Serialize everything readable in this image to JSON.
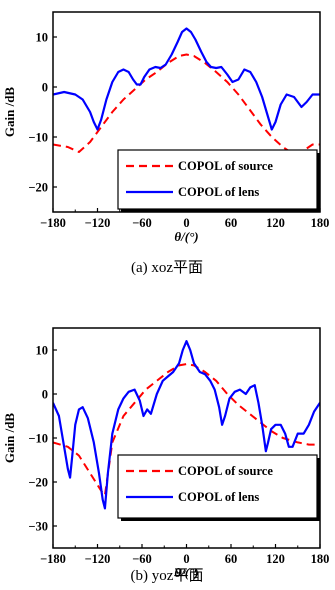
{
  "chart_data": [
    {
      "type": "line",
      "caption": "(a) xoz平面",
      "xlabel": "θ/(°)",
      "ylabel": "Gain /dB",
      "xlim": [
        -180,
        180
      ],
      "ylim": [
        -25,
        15
      ],
      "xticks": [
        "-180",
        "-120",
        "-60",
        "0",
        "60",
        "120",
        "180"
      ],
      "yticks": [
        "10",
        "0",
        "-10",
        "-20"
      ],
      "legend_position": "bottom-right",
      "series": [
        {
          "name": "COPOL of source",
          "style": "dashed",
          "color": "#ff0000",
          "x": [
            -180,
            -160,
            -145,
            -130,
            -115,
            -100,
            -85,
            -70,
            -55,
            -40,
            -25,
            -10,
            0,
            10,
            25,
            40,
            55,
            70,
            85,
            100,
            115,
            130,
            145,
            160,
            170,
            180
          ],
          "y": [
            -11.5,
            -12,
            -13,
            -11,
            -8,
            -5,
            -2.5,
            -0.5,
            1.5,
            3,
            4.8,
            6.2,
            6.5,
            6.2,
            4.8,
            3,
            1,
            -1.5,
            -4.5,
            -7.5,
            -10,
            -12,
            -13.5,
            -12.5,
            -11.5,
            -11.5
          ]
        },
        {
          "name": "COPOL of lens",
          "style": "solid",
          "color": "#0000ff",
          "x": [
            -180,
            -165,
            -150,
            -140,
            -130,
            -125,
            -120,
            -115,
            -108,
            -100,
            -92,
            -85,
            -78,
            -72,
            -67,
            -62,
            -57,
            -50,
            -42,
            -35,
            -28,
            -20,
            -12,
            -6,
            0,
            6,
            12,
            20,
            27,
            33,
            40,
            47,
            55,
            62,
            70,
            78,
            86,
            94,
            102,
            110,
            115,
            120,
            127,
            135,
            145,
            155,
            162,
            170,
            180
          ],
          "y": [
            -1.5,
            -1,
            -1.5,
            -2.5,
            -5,
            -7,
            -8.5,
            -6.5,
            -2.5,
            1,
            3,
            3.5,
            3,
            1.5,
            0.5,
            0.5,
            2,
            3.5,
            4,
            3.8,
            4.5,
            6.5,
            9,
            11,
            11.7,
            11,
            9.5,
            7,
            5,
            4,
            3.8,
            4,
            2.5,
            1,
            1.5,
            3.5,
            3,
            1,
            -2,
            -6,
            -8.5,
            -7,
            -3.5,
            -1.5,
            -2,
            -4,
            -3,
            -1.5,
            -1.5
          ]
        }
      ]
    },
    {
      "type": "line",
      "caption": "(b) yoz平面",
      "xlabel": "θ/(°)",
      "ylabel": "Gain /dB",
      "xlim": [
        -180,
        180
      ],
      "ylim": [
        -35,
        15
      ],
      "xticks": [
        "-180",
        "-120",
        "-60",
        "0",
        "60",
        "120",
        "180"
      ],
      "yticks": [
        "10",
        "0",
        "-10",
        "-20",
        "-30"
      ],
      "legend_position": "bottom-right",
      "series": [
        {
          "name": "COPOL of source",
          "style": "dashed",
          "color": "#ff0000",
          "x": [
            -180,
            -160,
            -145,
            -130,
            -115,
            -110,
            -100,
            -85,
            -70,
            -55,
            -40,
            -25,
            -10,
            0,
            10,
            25,
            40,
            55,
            70,
            85,
            100,
            115,
            130,
            150,
            165,
            180
          ],
          "y": [
            -11,
            -12,
            -14,
            -18,
            -22,
            -23,
            -11,
            -5,
            -2,
            1,
            3,
            5,
            6.5,
            6.8,
            6.5,
            5,
            3,
            0,
            -2.5,
            -4.5,
            -6.5,
            -8.5,
            -10,
            -11,
            -11.5,
            -11.5
          ]
        },
        {
          "name": "COPOL of lens",
          "style": "solid",
          "color": "#0000ff",
          "x": [
            -180,
            -172,
            -165,
            -160,
            -157,
            -154,
            -150,
            -145,
            -140,
            -133,
            -125,
            -118,
            -113,
            -110,
            -106,
            -100,
            -92,
            -85,
            -78,
            -70,
            -63,
            -58,
            -53,
            -48,
            -40,
            -32,
            -25,
            -18,
            -10,
            -5,
            0,
            5,
            10,
            18,
            25,
            32,
            38,
            44,
            48,
            52,
            58,
            65,
            72,
            80,
            86,
            92,
            97,
            102,
            107,
            110,
            114,
            120,
            127,
            133,
            138,
            143,
            150,
            158,
            165,
            172,
            180
          ],
          "y": [
            -2,
            -5,
            -12,
            -17,
            -19,
            -14,
            -7,
            -3.5,
            -3,
            -5.5,
            -11,
            -18,
            -24,
            -26,
            -18,
            -9,
            -3.5,
            -1,
            0.5,
            1,
            -1.5,
            -5,
            -3.5,
            -4.5,
            0,
            3,
            4,
            5,
            7,
            10,
            12,
            10,
            7,
            5,
            4.5,
            3,
            1,
            -3,
            -7,
            -5,
            -1,
            0.5,
            1,
            0,
            1.5,
            2,
            -2,
            -7,
            -13,
            -11,
            -8,
            -7,
            -7,
            -9,
            -12,
            -12,
            -9,
            -9,
            -7,
            -4,
            -2
          ]
        }
      ]
    }
  ]
}
